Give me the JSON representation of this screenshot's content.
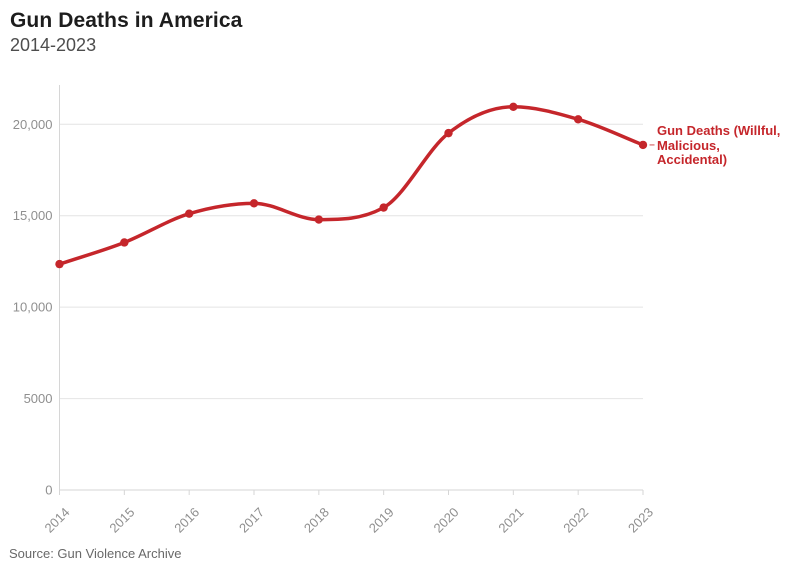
{
  "header": {
    "title": "Gun Deaths in America",
    "subtitle": "2014-2023"
  },
  "footer": {
    "source": "Source: Gun Violence Archive"
  },
  "series_label": {
    "lines": [
      "Gun Deaths (Willful,",
      "Malicious,",
      "Accidental)"
    ]
  },
  "colors": {
    "line": "#c5262b",
    "grid": "#e4e4e4",
    "axis": "#d6d6d6",
    "tick_text": "#8f8f8f",
    "title_text": "#1d1d1d",
    "subtitle_text": "#4d4d4d",
    "source_text": "#696969",
    "background": "#ffffff"
  },
  "chart_data": {
    "type": "line",
    "title": "Gun Deaths in America",
    "subtitle": "2014-2023",
    "source": "Gun Violence Archive",
    "x": [
      "2014",
      "2015",
      "2016",
      "2017",
      "2018",
      "2019",
      "2020",
      "2021",
      "2022",
      "2023"
    ],
    "series": [
      {
        "name": "Gun Deaths (Willful, Malicious, Accidental)",
        "color": "#c5262b",
        "values": [
          12355,
          13537,
          15112,
          15679,
          14789,
          15448,
          19518,
          20958,
          20274,
          18874
        ]
      }
    ],
    "xlabel": "",
    "ylabel": "",
    "ylim": [
      0,
      22150
    ],
    "yticks": [
      {
        "value": 0,
        "label": "0"
      },
      {
        "value": 5000,
        "label": "5000"
      },
      {
        "value": 10000,
        "label": "10,000"
      },
      {
        "value": 15000,
        "label": "15,000"
      },
      {
        "value": 20000,
        "label": "20,000"
      }
    ],
    "grid": "horizontal",
    "x_label_rotation": -45,
    "line_interpolation": "monotone",
    "markers": true,
    "legend_position": "end-of-line"
  }
}
